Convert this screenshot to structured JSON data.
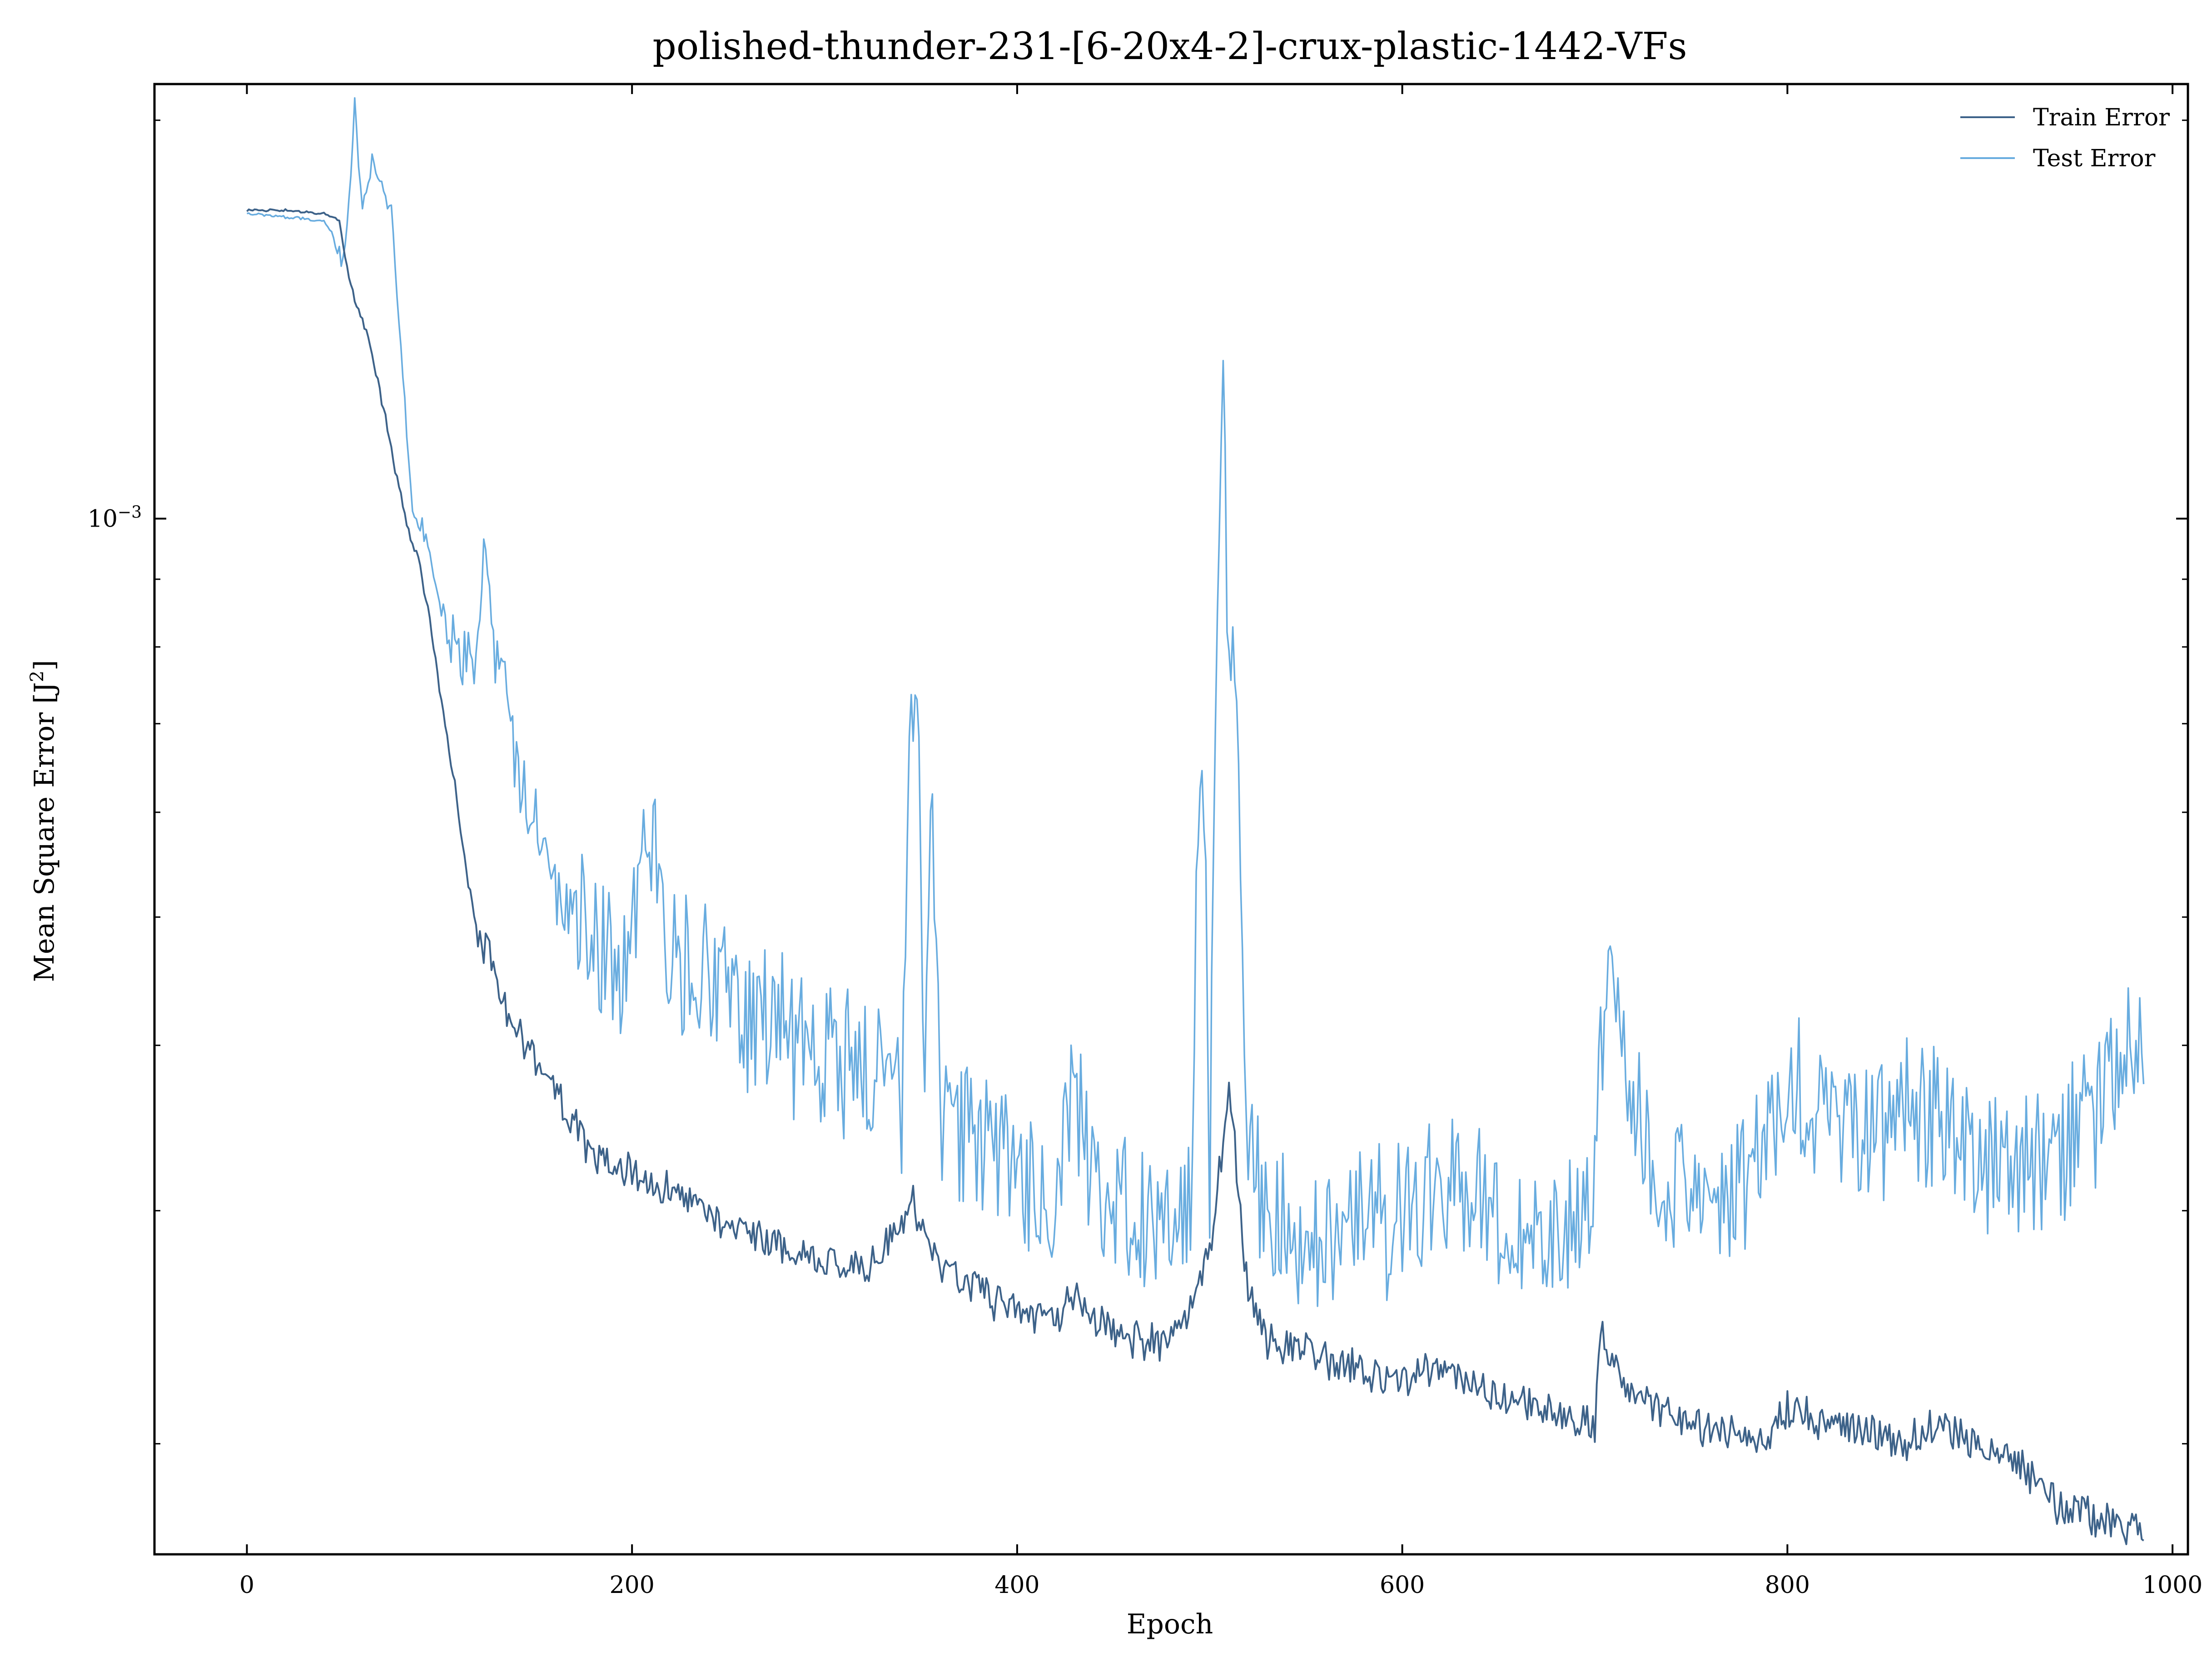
{
  "chart_data": {
    "type": "line",
    "title": "polished-thunder-231-[6-20x4-2]-crux-plastic-1442-VFs",
    "xlabel": "Epoch",
    "ylabel": "Mean Square Error [J²]",
    "ylabel_text": "Mean Square Error [J",
    "ylabel_sup": "2",
    "ylabel_close": "]",
    "yscale": "log",
    "xlim": [
      -48,
      1008
    ],
    "ylim": [
      0.000165,
      0.00213
    ],
    "x_ticks": [
      0,
      200,
      400,
      600,
      800,
      1000
    ],
    "x_tick_labels": [
      "0",
      "200",
      "400",
      "600",
      "800",
      "1000"
    ],
    "y_major_tick": {
      "value": 0.001,
      "base": "10",
      "exponent": "−3"
    },
    "y_minor_ticks": [
      0.0002,
      0.0003,
      0.0004,
      0.0005,
      0.0006,
      0.0007,
      0.0008,
      0.0009,
      0.002
    ],
    "grid": false,
    "legend_position": "top-right",
    "series": [
      {
        "name": "Train Error",
        "color": "#3d6289",
        "points": [
          [
            0,
            0.00171
          ],
          [
            20,
            0.00171
          ],
          [
            40,
            0.0017
          ],
          [
            48,
            0.00168
          ],
          [
            52,
            0.00155
          ],
          [
            56,
            0.00146
          ],
          [
            60,
            0.00142
          ],
          [
            66,
            0.00131
          ],
          [
            72,
            0.00119
          ],
          [
            78,
            0.00107
          ],
          [
            84,
            0.00098
          ],
          [
            90,
            0.00092
          ],
          [
            96,
            0.00082
          ],
          [
            102,
            0.00071
          ],
          [
            108,
            0.00063
          ],
          [
            114,
            0.00054
          ],
          [
            120,
            0.00048
          ],
          [
            124,
            0.00047
          ],
          [
            126,
            0.000485
          ],
          [
            128,
            0.00045
          ],
          [
            135,
            0.00042
          ],
          [
            150,
            0.00039
          ],
          [
            170,
            0.00035
          ],
          [
            180,
            0.00033
          ],
          [
            200,
            0.00032
          ],
          [
            220,
            0.00031
          ],
          [
            240,
            0.000295
          ],
          [
            260,
            0.000288
          ],
          [
            280,
            0.00028
          ],
          [
            300,
            0.000275
          ],
          [
            320,
            0.00027
          ],
          [
            330,
            0.00028
          ],
          [
            340,
            0.00029
          ],
          [
            346,
            0.00031
          ],
          [
            350,
            0.00029
          ],
          [
            360,
            0.00027
          ],
          [
            380,
            0.00026
          ],
          [
            400,
            0.000252
          ],
          [
            420,
            0.000245
          ],
          [
            430,
            0.00026
          ],
          [
            440,
            0.000248
          ],
          [
            460,
            0.00024
          ],
          [
            480,
            0.000237
          ],
          [
            490,
            0.00025
          ],
          [
            500,
            0.00028
          ],
          [
            506,
            0.00033
          ],
          [
            510,
            0.00038
          ],
          [
            516,
            0.0003
          ],
          [
            520,
            0.00026
          ],
          [
            530,
            0.00024
          ],
          [
            560,
            0.000232
          ],
          [
            600,
            0.000222
          ],
          [
            620,
            0.00023
          ],
          [
            640,
            0.00022
          ],
          [
            660,
            0.000216
          ],
          [
            680,
            0.00021
          ],
          [
            700,
            0.000207
          ],
          [
            703,
            0.000245
          ],
          [
            710,
            0.00023
          ],
          [
            730,
            0.000213
          ],
          [
            760,
            0.000205
          ],
          [
            790,
            0.000203
          ],
          [
            800,
            0.000212
          ],
          [
            830,
            0.000206
          ],
          [
            860,
            0.0002
          ],
          [
            880,
            0.000208
          ],
          [
            900,
            0.000198
          ],
          [
            920,
            0.000192
          ],
          [
            930,
            0.000188
          ],
          [
            940,
            0.00018
          ],
          [
            960,
            0.000176
          ],
          [
            985,
            0.000172
          ]
        ]
      },
      {
        "name": "Test Error",
        "color": "#68acdf",
        "points": [
          [
            0,
            0.0017
          ],
          [
            20,
            0.00169
          ],
          [
            40,
            0.00168
          ],
          [
            46,
            0.00163
          ],
          [
            50,
            0.00155
          ],
          [
            53,
            0.00175
          ],
          [
            56,
            0.00205
          ],
          [
            60,
            0.0017
          ],
          [
            65,
            0.00188
          ],
          [
            70,
            0.00178
          ],
          [
            75,
            0.0017
          ],
          [
            80,
            0.00134
          ],
          [
            86,
            0.00102
          ],
          [
            92,
            0.00098
          ],
          [
            98,
            0.00088
          ],
          [
            104,
            0.00085
          ],
          [
            110,
            0.00078
          ],
          [
            116,
            0.0008
          ],
          [
            120,
            0.00079
          ],
          [
            124,
            0.001
          ],
          [
            128,
            0.00078
          ],
          [
            134,
            0.00074
          ],
          [
            140,
            0.00064
          ],
          [
            150,
            0.00059
          ],
          [
            160,
            0.00052
          ],
          [
            175,
            0.00049
          ],
          [
            190,
            0.00047
          ],
          [
            200,
            0.00047
          ],
          [
            206,
            0.00064
          ],
          [
            220,
            0.00046
          ],
          [
            240,
            0.00045
          ],
          [
            260,
            0.00042
          ],
          [
            270,
            0.00043
          ],
          [
            280,
            0.00041
          ],
          [
            300,
            0.0004
          ],
          [
            320,
            0.00039
          ],
          [
            340,
            0.00037
          ],
          [
            344,
            0.00077
          ],
          [
            348,
            0.00076
          ],
          [
            352,
            0.00036
          ],
          [
            356,
            0.00062
          ],
          [
            360,
            0.00035
          ],
          [
            380,
            0.00034
          ],
          [
            400,
            0.00032
          ],
          [
            420,
            0.000315
          ],
          [
            430,
            0.00038
          ],
          [
            440,
            0.00031
          ],
          [
            460,
            0.0003
          ],
          [
            480,
            0.0003
          ],
          [
            490,
            0.00032
          ],
          [
            496,
            0.00075
          ],
          [
            500,
            0.00033
          ],
          [
            504,
            0.00095
          ],
          [
            507,
            0.00119
          ],
          [
            510,
            0.00078
          ],
          [
            514,
            0.0007
          ],
          [
            520,
            0.00035
          ],
          [
            530,
            0.0003
          ],
          [
            560,
            0.000288
          ],
          [
            600,
            0.0003
          ],
          [
            620,
            0.00031
          ],
          [
            640,
            0.00031
          ],
          [
            660,
            0.00029
          ],
          [
            680,
            0.00029
          ],
          [
            700,
            0.00031
          ],
          [
            705,
            0.00045
          ],
          [
            710,
            0.00044
          ],
          [
            730,
            0.00032
          ],
          [
            760,
            0.00031
          ],
          [
            790,
            0.00033
          ],
          [
            800,
            0.00038
          ],
          [
            830,
            0.00034
          ],
          [
            860,
            0.00036
          ],
          [
            880,
            0.00035
          ],
          [
            900,
            0.00033
          ],
          [
            920,
            0.00032
          ],
          [
            940,
            0.00033
          ],
          [
            960,
            0.00036
          ],
          [
            975,
            0.00041
          ],
          [
            985,
            0.00042
          ]
        ]
      }
    ]
  }
}
